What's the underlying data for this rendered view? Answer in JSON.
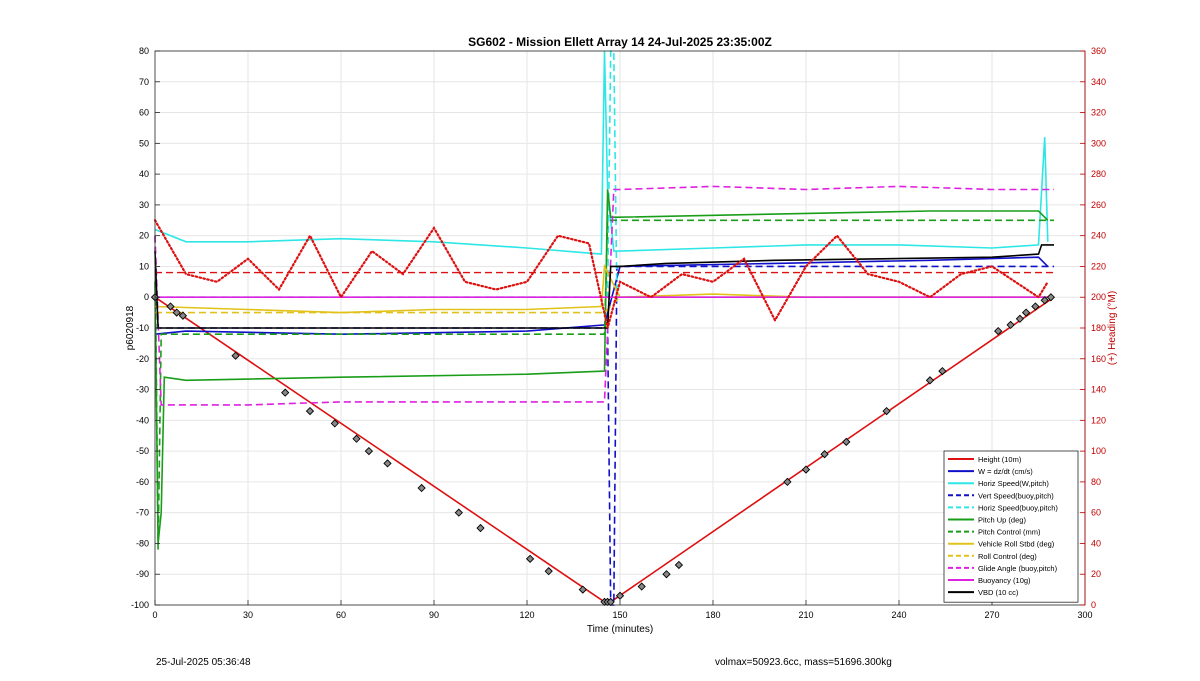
{
  "chart_data": {
    "type": "line",
    "title": "SG602 - Mission Ellett Array 14 24-Jul-2025 23:35:00Z",
    "xlabel": "Time (minutes)",
    "ylabel_left": "p6020918",
    "ylabel_right": "(+) Heading (°M)",
    "xlim": [
      0,
      300
    ],
    "ylim_left": [
      -100,
      80
    ],
    "ylim_right": [
      0,
      360
    ],
    "x_ticks": [
      "0",
      "30",
      "60",
      "90",
      "120",
      "150",
      "180",
      "210",
      "240",
      "270",
      "300"
    ],
    "y_ticks_left": [
      "80",
      "70",
      "60",
      "50",
      "40",
      "30",
      "20",
      "10",
      "0",
      "-10",
      "-20",
      "-30",
      "-40",
      "-50",
      "-60",
      "-70",
      "-80",
      "-90",
      "-100"
    ],
    "y_ticks_right": [
      "360",
      "340",
      "320",
      "300",
      "280",
      "260",
      "240",
      "220",
      "200",
      "180",
      "160",
      "140",
      "120",
      "100",
      "80",
      "60",
      "40",
      "20",
      "0"
    ],
    "grid": true,
    "legend_position": "bottom-right",
    "colors": {
      "red": "#dd1111",
      "blue": "#1010c8",
      "cyan": "#2ee6e6",
      "green": "#1a9e1a",
      "yellow": "#e2c21a",
      "magenta": "#e020e0",
      "black": "#000000",
      "right_axis": "#c00000"
    },
    "series": [
      {
        "name": "Height (10m)",
        "color": "red",
        "style": "solid",
        "x": [
          0,
          145,
          147,
          290
        ],
        "y": [
          0,
          -99,
          -99,
          0
        ]
      },
      {
        "name": "W = dz/dt (cm/s)",
        "color": "blue",
        "style": "solid",
        "x": [
          0,
          10,
          60,
          120,
          145,
          150,
          200,
          250,
          285,
          288
        ],
        "y": [
          -12,
          -11,
          -12,
          -11,
          -9,
          10,
          11,
          12,
          13,
          10
        ]
      },
      {
        "name": "Horiz Speed(W,pitch)",
        "color": "cyan",
        "style": "solid",
        "x": [
          0,
          10,
          30,
          60,
          90,
          120,
          144,
          145,
          146,
          148,
          150,
          180,
          210,
          240,
          270,
          285,
          287,
          288
        ],
        "y": [
          22,
          18,
          18,
          19,
          18,
          16,
          14,
          80,
          35,
          15,
          15,
          16,
          17,
          17,
          16,
          17,
          52,
          18
        ]
      },
      {
        "name": "Vert Speed(buoy,pitch)",
        "color": "blue",
        "style": "dashed",
        "x": [
          0,
          146,
          147,
          148,
          149,
          150,
          290
        ],
        "y": [
          -10,
          -10,
          -100,
          -100,
          10,
          10,
          10
        ]
      },
      {
        "name": "Horiz Speed(buoy,pitch)",
        "color": "cyan",
        "style": "dashed",
        "x": [
          0,
          146,
          147,
          148,
          149,
          290
        ],
        "y": [
          0,
          0,
          80,
          80,
          0,
          0
        ]
      },
      {
        "name": "Pitch Up (deg)",
        "color": "green",
        "style": "solid",
        "x": [
          0,
          1,
          2,
          3,
          10,
          60,
          120,
          145,
          146,
          147,
          150,
          200,
          250,
          285,
          288
        ],
        "y": [
          5,
          -80,
          -70,
          -26,
          -27,
          -26,
          -25,
          -24,
          35,
          26,
          26,
          27,
          28,
          28,
          25
        ]
      },
      {
        "name": "Pitch Control (mm)",
        "color": "green",
        "style": "dashed",
        "x": [
          0,
          1,
          2,
          145,
          146,
          147,
          290
        ],
        "y": [
          20,
          -82,
          -12,
          -12,
          25,
          25,
          25
        ]
      },
      {
        "name": "Vehicle Roll Stbd (deg)",
        "color": "yellow",
        "style": "solid",
        "x": [
          0,
          30,
          60,
          90,
          120,
          144,
          145,
          150,
          180,
          210,
          240,
          270,
          290
        ],
        "y": [
          -3,
          -4,
          -5,
          -4,
          -4,
          -3,
          10,
          0,
          1,
          0,
          0,
          0,
          0
        ]
      },
      {
        "name": "Roll Control (deg)",
        "color": "yellow",
        "style": "dashed",
        "x": [
          0,
          30,
          60,
          90,
          120,
          145,
          150,
          200,
          250,
          290
        ],
        "y": [
          -5,
          -5,
          -5,
          -5,
          -5,
          -5,
          0,
          0,
          0,
          0
        ]
      },
      {
        "name": "Glide Angle (buoy,pitch)",
        "color": "magenta",
        "style": "dashed",
        "x": [
          0,
          2,
          30,
          60,
          90,
          120,
          145,
          148,
          150,
          180,
          210,
          240,
          270,
          290
        ],
        "y": [
          20,
          -35,
          -35,
          -34,
          -34,
          -34,
          -34,
          35,
          35,
          36,
          35,
          36,
          35,
          35
        ]
      },
      {
        "name": "Buoyancy (10g)",
        "color": "magenta",
        "style": "solid",
        "x": [
          0,
          290
        ],
        "y": [
          0,
          0
        ]
      },
      {
        "name": "VBD (10 cc)",
        "color": "black",
        "style": "solid",
        "x": [
          0,
          1,
          2,
          145,
          146,
          147,
          150,
          165,
          200,
          270,
          285,
          286,
          290
        ],
        "y": [
          15,
          -10,
          -10,
          -10,
          -10,
          10,
          10,
          11,
          12,
          13,
          14,
          17,
          17
        ]
      }
    ],
    "heading_series": {
      "axis": "right",
      "color": "red",
      "style": "dotted",
      "x": [
        0,
        10,
        20,
        30,
        40,
        50,
        60,
        70,
        80,
        90,
        100,
        110,
        120,
        130,
        140,
        146,
        150,
        160,
        170,
        180,
        190,
        200,
        210,
        220,
        230,
        240,
        250,
        260,
        270,
        285,
        288
      ],
      "y": [
        250,
        215,
        210,
        225,
        205,
        240,
        200,
        230,
        215,
        245,
        210,
        205,
        210,
        240,
        235,
        180,
        210,
        200,
        215,
        210,
        225,
        185,
        220,
        240,
        215,
        210,
        200,
        215,
        220,
        200,
        210
      ]
    },
    "heading_reference": {
      "axis": "right",
      "color": "red",
      "style": "dashed",
      "x": [
        0,
        145,
        150,
        290
      ],
      "y": [
        216,
        216,
        216,
        216
      ]
    },
    "markers": {
      "x": [
        0,
        5,
        7,
        9,
        26,
        42,
        50,
        58,
        65,
        69,
        75,
        86,
        98,
        105,
        121,
        127,
        138,
        145,
        146,
        147,
        150,
        157,
        165,
        169,
        204,
        210,
        216,
        223,
        236,
        250,
        254,
        272,
        276,
        279,
        281,
        284,
        287,
        289
      ],
      "y": [
        0,
        -3,
        -5,
        -6,
        -19,
        -31,
        -37,
        -41,
        -46,
        -50,
        -54,
        -62,
        -70,
        -75,
        -85,
        -89,
        -95,
        -99,
        -99,
        -99,
        -97,
        -94,
        -90,
        -87,
        -60,
        -56,
        -51,
        -47,
        -37,
        -27,
        -24,
        -11,
        -9,
        -7,
        -5,
        -3,
        -1,
        0
      ]
    },
    "footer_left": "25-Jul-2025 05:36:48",
    "footer_right": "volmax=50923.6cc, mass=51696.300kg"
  }
}
